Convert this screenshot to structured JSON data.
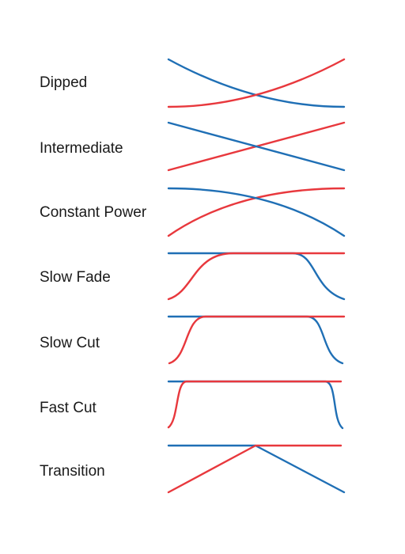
{
  "crossfades": [
    {
      "label": "Dipped"
    },
    {
      "label": "Intermediate"
    },
    {
      "label": "Constant Power"
    },
    {
      "label": "Slow Fade"
    },
    {
      "label": "Slow Cut"
    },
    {
      "label": "Fast Cut"
    },
    {
      "label": "Transition"
    }
  ],
  "colors": {
    "fade_in": "#e8383d",
    "fade_out": "#1f6fb5",
    "label": "#1a1a1a",
    "background": "#ffffff"
  }
}
